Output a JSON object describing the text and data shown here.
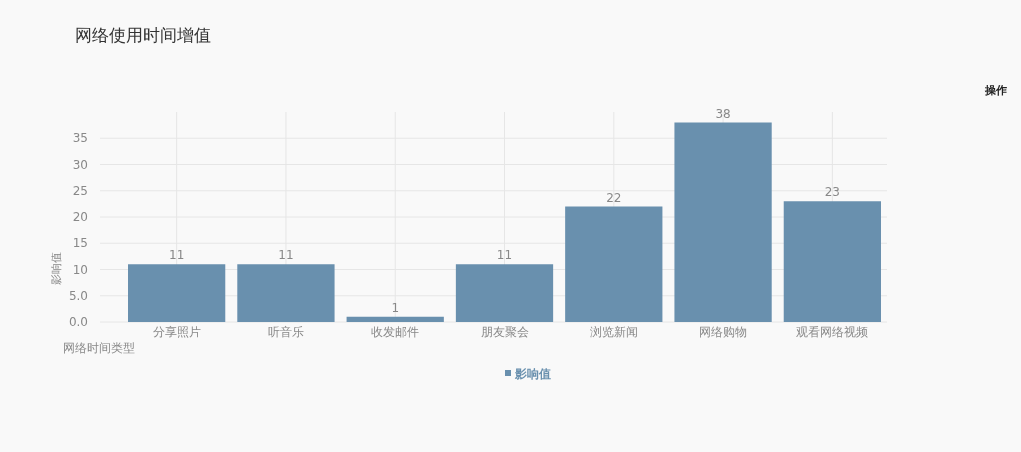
{
  "chart_data": {
    "type": "bar",
    "title": "网络使用时间增值",
    "xlabel": "网络时间类型",
    "ylabel": "影响值",
    "categories": [
      "分享照片",
      "听音乐",
      "收发邮件",
      "朋友聚会",
      "浏览新闻",
      "网络购物",
      "观看网络视频"
    ],
    "series": [
      {
        "name": "影响值",
        "color": "#6990ae",
        "values": [
          11,
          11,
          1,
          11,
          22,
          38,
          23
        ]
      }
    ],
    "ylim": [
      0,
      40
    ],
    "yticks": [
      {
        "value": 0,
        "label": "0.0"
      },
      {
        "value": 5,
        "label": "5.0"
      },
      10,
      15,
      20,
      25,
      30,
      35
    ],
    "grid": true,
    "legend": "bottom",
    "data_labels": true,
    "annotations": [
      "操作"
    ]
  }
}
